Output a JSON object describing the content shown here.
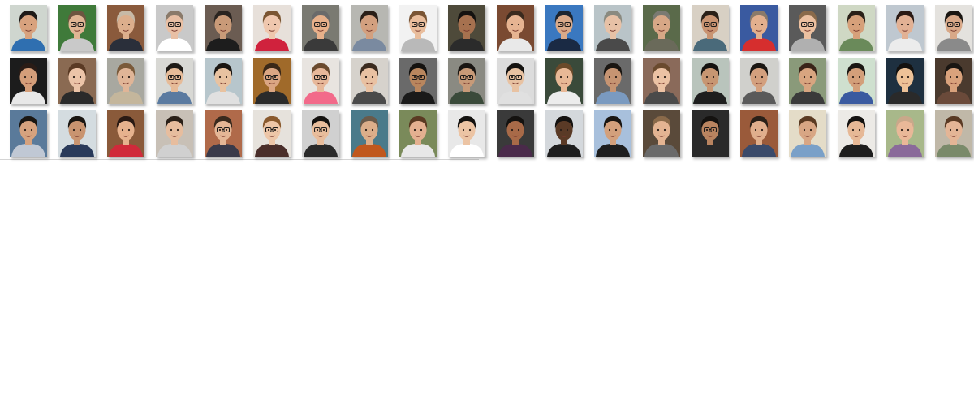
{
  "gallery": {
    "rows": [
      [
        {
          "bg": "#cfd6cf",
          "skin": "#d8a27e",
          "hair": "#1e1a18",
          "shirt": "#2f6fb0",
          "glasses": false
        },
        {
          "bg": "#3f7a3a",
          "skin": "#e0b594",
          "hair": "#6d5540",
          "shirt": "#c9c9c9",
          "glasses": true
        },
        {
          "bg": "#8a5a3c",
          "skin": "#dcae8c",
          "hair": "#c7b9a6",
          "shirt": "#2a2f3a",
          "glasses": false
        },
        {
          "bg": "#c9c9c9",
          "skin": "#e8bfa4",
          "hair": "#8a7a6a",
          "shirt": "#ffffff",
          "glasses": true
        },
        {
          "bg": "#6b5c52",
          "skin": "#c99a78",
          "hair": "#2a2420",
          "shirt": "#1d1d1d",
          "glasses": false
        },
        {
          "bg": "#e7e0da",
          "skin": "#efc7ae",
          "hair": "#7a5532",
          "shirt": "#d0223d",
          "glasses": false
        },
        {
          "bg": "#7a7a72",
          "skin": "#e7b08a",
          "hair": "#6a6a6a",
          "shirt": "#3a3a3a",
          "glasses": true
        },
        {
          "bg": "#b7b7b2",
          "skin": "#d3a07f",
          "hair": "#2a1f18",
          "shirt": "#7a8aa0",
          "glasses": false
        },
        {
          "bg": "#f2f2f2",
          "skin": "#e9bd9c",
          "hair": "#7a5535",
          "shirt": "#b9b9b9",
          "glasses": true
        },
        {
          "bg": "#4e4a3a",
          "skin": "#a6714f",
          "hair": "#141210",
          "shirt": "#2b2b2b",
          "glasses": false
        },
        {
          "bg": "#7a4a32",
          "skin": "#e6b492",
          "hair": "#3a2a1e",
          "shirt": "#e9e9e9",
          "glasses": false
        },
        {
          "bg": "#3a78c0",
          "skin": "#d9a989",
          "hair": "#1b2430",
          "shirt": "#1a2a44",
          "glasses": true
        },
        {
          "bg": "#b9c4c8",
          "skin": "#e7c1a6",
          "hair": "#8a8a80",
          "shirt": "#4a4a4a",
          "glasses": false
        },
        {
          "bg": "#5a6a4a",
          "skin": "#d7a786",
          "hair": "#7a7a72",
          "shirt": "#6a6a5a",
          "glasses": false
        },
        {
          "bg": "#d8d0c4",
          "skin": "#c99472",
          "hair": "#2a2018",
          "shirt": "#4a6a7a",
          "glasses": true
        },
        {
          "bg": "#3a5aa0",
          "skin": "#e3b08e",
          "hair": "#8a7a6a",
          "shirt": "#d62e2e",
          "glasses": false
        },
        {
          "bg": "#5a5a5a",
          "skin": "#ecc0a0",
          "hair": "#8a6a4a",
          "shirt": "#b0b0b0",
          "glasses": true
        },
        {
          "bg": "#cfd8c4",
          "skin": "#d6a07a",
          "hair": "#2a2018",
          "shirt": "#6a8a5a",
          "glasses": false
        },
        {
          "bg": "#bfc8d0",
          "skin": "#e2b194",
          "hair": "#2a1a14",
          "shirt": "#ececec",
          "glasses": false
        },
        {
          "bg": "#e4e2de",
          "skin": "#d8a888",
          "hair": "#1a1612",
          "shirt": "#8a8a8a",
          "glasses": true
        }
      ],
      [
        {
          "bg": "#1c1c1c",
          "skin": "#d49e7a",
          "hair": "#2a1c16",
          "shirt": "#e8e8e8",
          "glasses": false
        },
        {
          "bg": "#8a6a52",
          "skin": "#ecc4a8",
          "hair": "#5a3a24",
          "shirt": "#2a2a2a",
          "glasses": false
        },
        {
          "bg": "#a8a8a0",
          "skin": "#e0b597",
          "hair": "#7a5a3a",
          "shirt": "#c4b69c",
          "glasses": false
        },
        {
          "bg": "#d8d8d4",
          "skin": "#e6bb98",
          "hair": "#1e1a16",
          "shirt": "#5a7aa0",
          "glasses": true
        },
        {
          "bg": "#b7c6cc",
          "skin": "#e8c2a0",
          "hair": "#1a1612",
          "shirt": "#e0e0e0",
          "glasses": false
        },
        {
          "bg": "#a06a2a",
          "skin": "#dba683",
          "hair": "#3a2818",
          "shirt": "#2a2a2a",
          "glasses": true
        },
        {
          "bg": "#e8e4e0",
          "skin": "#e7b89a",
          "hair": "#6a4a2e",
          "shirt": "#f26a8a",
          "glasses": true
        },
        {
          "bg": "#d6d2cc",
          "skin": "#e9c1a2",
          "hair": "#3a2a1e",
          "shirt": "#4a4a4a",
          "glasses": false
        },
        {
          "bg": "#6a6a6a",
          "skin": "#b8865e",
          "hair": "#141210",
          "shirt": "#1a1a1a",
          "glasses": true
        },
        {
          "bg": "#8a8a82",
          "skin": "#c79a78",
          "hair": "#1a1612",
          "shirt": "#3a4a3a",
          "glasses": true
        },
        {
          "bg": "#dcdcdc",
          "skin": "#e8c2a2",
          "hair": "#141210",
          "shirt": "#e0e0e0",
          "glasses": true
        },
        {
          "bg": "#3a4a3a",
          "skin": "#e8b896",
          "hair": "#6a4a2a",
          "shirt": "#ececec",
          "glasses": false
        },
        {
          "bg": "#6a6a6a",
          "skin": "#c69472",
          "hair": "#1a1612",
          "shirt": "#7a9ac0",
          "glasses": false
        },
        {
          "bg": "#8a6a5a",
          "skin": "#ecc2a4",
          "hair": "#6a4a2e",
          "shirt": "#4a4a4a",
          "glasses": false
        },
        {
          "bg": "#b9c4bc",
          "skin": "#c79672",
          "hair": "#141210",
          "shirt": "#1e1e1e",
          "glasses": false
        },
        {
          "bg": "#d0d0cc",
          "skin": "#d3a07e",
          "hair": "#1a1612",
          "shirt": "#5a5a5a",
          "glasses": false
        },
        {
          "bg": "#8a9a7a",
          "skin": "#d8a580",
          "hair": "#3a2418",
          "shirt": "#3a3a3a",
          "glasses": false
        },
        {
          "bg": "#cfe0cf",
          "skin": "#d39f7a",
          "hair": "#1a1612",
          "shirt": "#3a5aa0",
          "glasses": false
        },
        {
          "bg": "#1e3040",
          "skin": "#edc298",
          "hair": "#141210",
          "shirt": "#2a2a2a",
          "glasses": false
        },
        {
          "bg": "#4a3a2e",
          "skin": "#d9a27c",
          "hair": "#1a1612",
          "shirt": "#6a4a3a",
          "glasses": false
        }
      ],
      [
        {
          "bg": "#5a7a9a",
          "skin": "#d6a27e",
          "hair": "#1a1612",
          "shirt": "#c0c8d4",
          "glasses": false
        },
        {
          "bg": "#d4dce0",
          "skin": "#c99470",
          "hair": "#1a1612",
          "shirt": "#2a3a5a",
          "glasses": false
        },
        {
          "bg": "#8a5a3a",
          "skin": "#e6b28e",
          "hair": "#2a1a14",
          "shirt": "#d02a3a",
          "glasses": false
        },
        {
          "bg": "#c8c0b6",
          "skin": "#e7bd9e",
          "hair": "#2a2018",
          "shirt": "#d0d0d0",
          "glasses": false
        },
        {
          "bg": "#b06a4a",
          "skin": "#e4b696",
          "hair": "#3a2a1e",
          "shirt": "#3a3a4a",
          "glasses": true
        },
        {
          "bg": "#e6e2dc",
          "skin": "#edc6a8",
          "hair": "#8a5a2e",
          "shirt": "#4a2e2a",
          "glasses": true
        },
        {
          "bg": "#d0d0d0",
          "skin": "#e8bd9c",
          "hair": "#141210",
          "shirt": "#2a2a2a",
          "glasses": true
        },
        {
          "bg": "#4a7a8a",
          "skin": "#dcae8a",
          "hair": "#6a5a4a",
          "shirt": "#c0581e",
          "glasses": false
        },
        {
          "bg": "#7a8a5a",
          "skin": "#e4b090",
          "hair": "#5a3a22",
          "shirt": "#e8e8e8",
          "glasses": false
        },
        {
          "bg": "#e8e8e8",
          "skin": "#ecc4a4",
          "hair": "#141210",
          "shirt": "#ffffff",
          "glasses": false
        },
        {
          "bg": "#3a3a3a",
          "skin": "#a86a48",
          "hair": "#141210",
          "shirt": "#4a2a4a",
          "glasses": false
        },
        {
          "bg": "#d4d8dc",
          "skin": "#5a3a26",
          "hair": "#141210",
          "shirt": "#1e1e1e",
          "glasses": false
        },
        {
          "bg": "#a8c0dc",
          "skin": "#d3a07c",
          "hair": "#1a1612",
          "shirt": "#1e1e1e",
          "glasses": false
        },
        {
          "bg": "#5a4a3a",
          "skin": "#e4b492",
          "hair": "#8a6a4a",
          "shirt": "#6a6a6a",
          "glasses": false
        },
        {
          "bg": "#2a2a2a",
          "skin": "#b98460",
          "hair": "#141210",
          "shirt": "#2a2a2a",
          "glasses": true
        },
        {
          "bg": "#9a5a3a",
          "skin": "#e0ae8c",
          "hair": "#2a2018",
          "shirt": "#3a4a6a",
          "glasses": false
        },
        {
          "bg": "#e4dcc8",
          "skin": "#d8a684",
          "hair": "#5a3a22",
          "shirt": "#7aa0c8",
          "glasses": false
        },
        {
          "bg": "#eceae6",
          "skin": "#e6b896",
          "hair": "#141210",
          "shirt": "#1e1e1e",
          "glasses": false
        },
        {
          "bg": "#a8b88a",
          "skin": "#e9b898",
          "hair": "#c9a88a",
          "shirt": "#8a6a9a",
          "glasses": false
        },
        {
          "bg": "#c0b8a8",
          "skin": "#e4b596",
          "hair": "#5a3a24",
          "shirt": "#7a8a6a",
          "glasses": false
        }
      ]
    ]
  }
}
